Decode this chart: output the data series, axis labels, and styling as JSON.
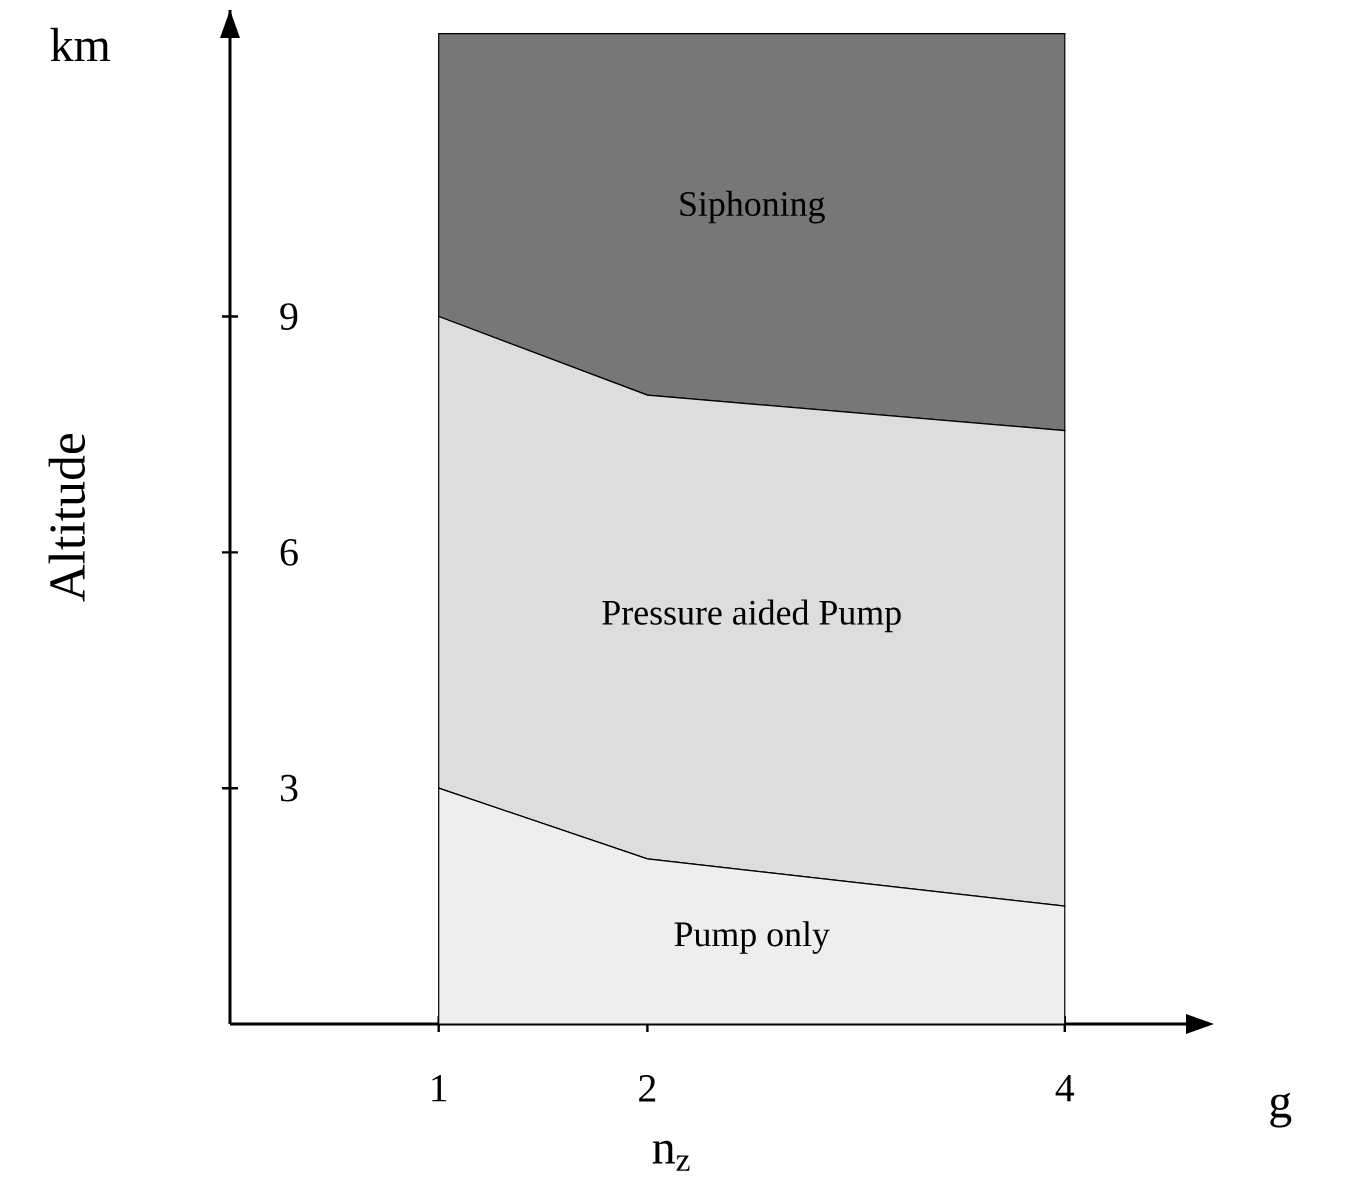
{
  "chart_data": {
    "type": "area",
    "stacked": true,
    "xlabel": "n$_{z}$",
    "ylabel": "Altitude",
    "annotations": [
      "km",
      "g"
    ],
    "x": [
      1,
      2,
      4
    ],
    "xlim": [
      0,
      4.6
    ],
    "ylim": [
      0,
      12.9
    ],
    "xticks": [
      1,
      2,
      4
    ],
    "yticks": [
      3,
      6,
      9
    ],
    "marker": "none",
    "series": [
      {
        "name": "Pump only",
        "color": "#eeeeee",
        "values": [
          3,
          2.1,
          1.5
        ]
      },
      {
        "name": "Pressure aided Pump",
        "color": "#dddddd",
        "values": [
          6,
          5.9,
          6.05
        ]
      },
      {
        "name": "Siphoning",
        "color": "#777777",
        "values": [
          3.6,
          4.6,
          5.05
        ]
      }
    ]
  }
}
